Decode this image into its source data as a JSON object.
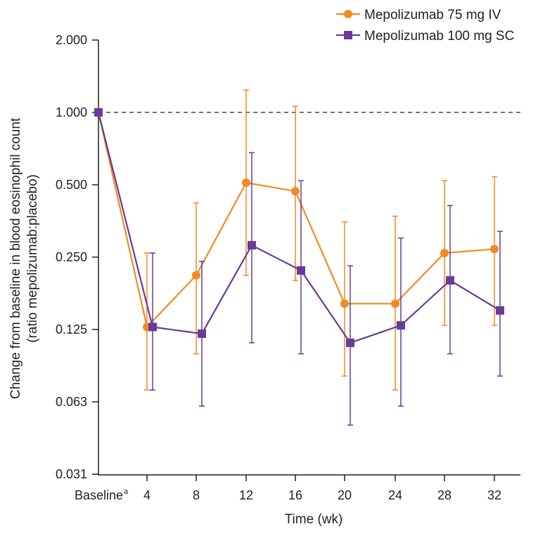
{
  "chart_data": {
    "type": "line",
    "xlabel": "Time (wk)",
    "ylabel": [
      "Change from baseline in blood eosinophil count",
      "(ratio mepolizumab:placebo)"
    ],
    "y_scale": "log2",
    "ylim": [
      0.03125,
      2
    ],
    "yticks": [
      2,
      1,
      0.5,
      0.25,
      0.125,
      0.0625,
      0.03125
    ],
    "ytick_labels": [
      "2.000",
      "1.000",
      "0.500",
      "0.250",
      "0.125",
      "0.063",
      "0.031"
    ],
    "categories": [
      "Baseline",
      "4",
      "8",
      "12",
      "16",
      "20",
      "24",
      "28",
      "32"
    ],
    "baseline_superscript": "a",
    "reference_line": 1.0,
    "grid": false,
    "legend_position": "top-right",
    "series": [
      {
        "name": "Mepolizumab 75 mg IV",
        "color": "#f28a22",
        "marker": "circle",
        "values": [
          1.0,
          0.128,
          0.21,
          0.51,
          0.47,
          0.16,
          0.16,
          0.26,
          0.27
        ],
        "upper": [
          null,
          0.26,
          0.42,
          1.24,
          1.06,
          0.35,
          0.37,
          0.52,
          0.54
        ],
        "lower": [
          null,
          0.07,
          0.099,
          0.21,
          0.2,
          0.08,
          0.07,
          0.13,
          0.13
        ]
      },
      {
        "name": "Mepolizumab 100 mg SC",
        "color": "#673b97",
        "marker": "square",
        "values": [
          1.0,
          0.128,
          0.12,
          0.28,
          0.22,
          0.11,
          0.13,
          0.2,
          0.15
        ],
        "upper": [
          null,
          0.26,
          0.24,
          0.68,
          0.52,
          0.23,
          0.3,
          0.41,
          0.32
        ],
        "lower": [
          null,
          0.07,
          0.06,
          0.11,
          0.099,
          0.05,
          0.06,
          0.099,
          0.08
        ]
      }
    ]
  }
}
